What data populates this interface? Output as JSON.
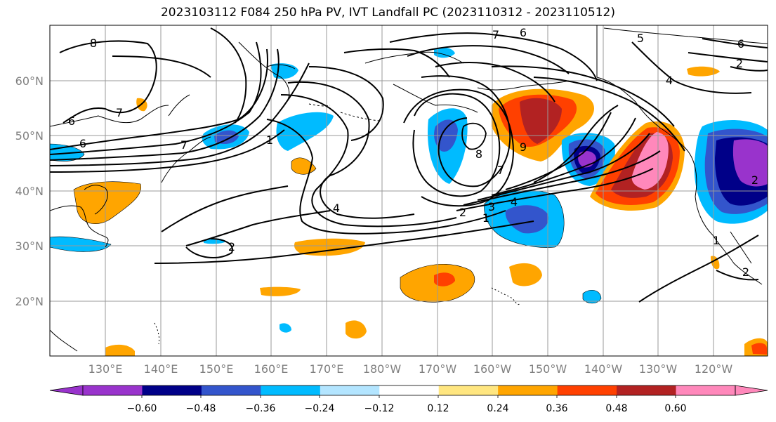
{
  "title": "2023103112 F084 250 hPa PV, IVT Landfall PC (2023110312 - 2023110512)",
  "lat_labels": [
    "60°N",
    "50°N",
    "40°N",
    "30°N",
    "20°N"
  ],
  "lon_labels": [
    "130°E",
    "140°E",
    "150°E",
    "160°E",
    "170°E",
    "180°W",
    "170°W",
    "160°W",
    "150°W",
    "140°W",
    "130°W",
    "120°W"
  ],
  "colorbar": {
    "ticks": [
      "−0.60",
      "−0.48",
      "−0.36",
      "−0.24",
      "−0.12",
      "0.12",
      "0.24",
      "0.36",
      "0.48",
      "0.60"
    ],
    "colors": [
      "#9933cc",
      "#000088",
      "#3355cc",
      "#00bbff",
      "#b3e5ff",
      "#ffffff",
      "#ffe680",
      "#ffa500",
      "#ff4000",
      "#b22222",
      "#ff88bb"
    ]
  },
  "contour_labels": [
    "8",
    "7",
    "6",
    "6",
    "7",
    "1",
    "8",
    "7",
    "6",
    "5",
    "4",
    "2",
    "2",
    "1",
    "3",
    "4",
    "2",
    "1",
    "2",
    "4",
    "6",
    "7",
    "9",
    "2"
  ],
  "colors": {
    "axis_text": "#808080",
    "grid": "#999999"
  }
}
